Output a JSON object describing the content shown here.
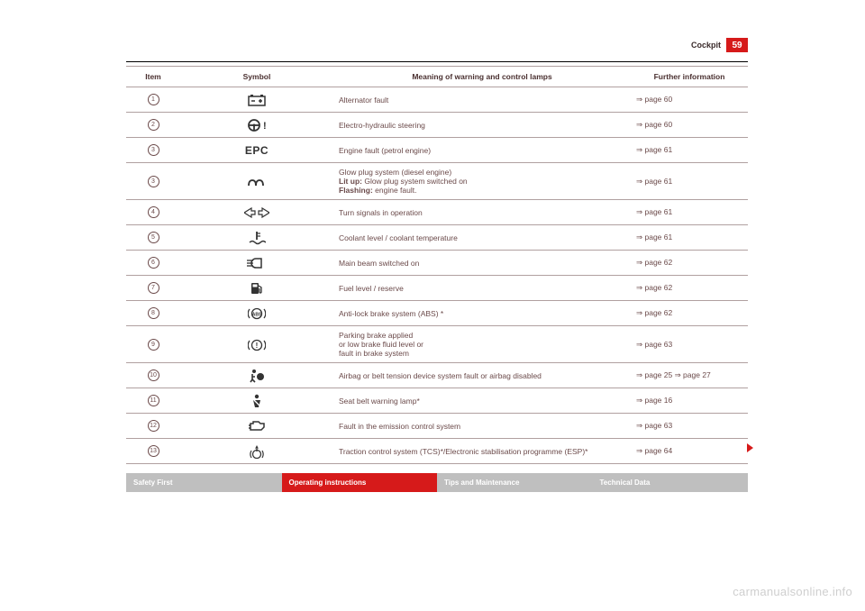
{
  "header": {
    "section_title": "Cockpit",
    "page_number": "59"
  },
  "colors": {
    "accent_red": "#d61a1a",
    "grey_tab": "#bfbfbf",
    "text_muted": "#6b4a4a",
    "border": "#b0a0a0",
    "page_bg": "#ffffff"
  },
  "table": {
    "headers": {
      "item": "Item",
      "symbol": "Symbol",
      "meaning": "Meaning of warning and control lamps",
      "further": "Further information"
    },
    "rows": [
      {
        "item": "1",
        "symbol_key": "battery",
        "meaning_html": "Alternator fault",
        "further": "⇒ page 60"
      },
      {
        "item": "2",
        "symbol_key": "steering",
        "meaning_html": "Electro-hydraulic steering",
        "further": "⇒ page 60"
      },
      {
        "item": "3",
        "symbol_key": "epc",
        "meaning_html": "Engine fault (petrol engine)",
        "further": "⇒ page 61"
      },
      {
        "item": "3",
        "symbol_key": "glow",
        "meaning_html": "Glow plug system (diesel engine)<br><span class=\"bold\">Lit up:</span> Glow plug system switched on<br><span class=\"bold\">Flashing:</span> engine fault.",
        "further": "⇒ page 61"
      },
      {
        "item": "4",
        "symbol_key": "turn",
        "meaning_html": "Turn signals in operation",
        "further": "⇒ page 61"
      },
      {
        "item": "5",
        "symbol_key": "coolant",
        "meaning_html": "Coolant level / coolant temperature",
        "further": "⇒ page 61"
      },
      {
        "item": "6",
        "symbol_key": "mainbeam",
        "meaning_html": "Main beam switched on",
        "further": "⇒ page 62"
      },
      {
        "item": "7",
        "symbol_key": "fuel",
        "meaning_html": "Fuel level / reserve",
        "further": "⇒ page 62"
      },
      {
        "item": "8",
        "symbol_key": "abs",
        "meaning_html": "Anti-lock brake system (ABS) *",
        "further": "⇒ page 62"
      },
      {
        "item": "9",
        "symbol_key": "brake",
        "meaning_html": "Parking brake applied<br>or low brake fluid level or<br>fault in brake system",
        "further": "⇒ page 63"
      },
      {
        "item": "10",
        "symbol_key": "airbag",
        "meaning_html": "Airbag or belt tension device system fault or airbag disabled",
        "further": "⇒ page 25 ⇒ page 27"
      },
      {
        "item": "11",
        "symbol_key": "seatbelt",
        "meaning_html": "Seat belt warning lamp*",
        "further": "⇒ page 16"
      },
      {
        "item": "12",
        "symbol_key": "emission",
        "meaning_html": "Fault in the emission control system",
        "further": "⇒ page 63"
      },
      {
        "item": "13",
        "symbol_key": "tcs",
        "meaning_html": "Traction control system (TCS)*/Electronic stabilisation programme (ESP)*",
        "further": "⇒ page 64"
      }
    ]
  },
  "footer_tabs": {
    "t1": "Safety First",
    "t2": "Operating instructions",
    "t3": "Tips and Maintenance",
    "t4": "Technical Data"
  },
  "watermark": "carmanualsonline.info"
}
